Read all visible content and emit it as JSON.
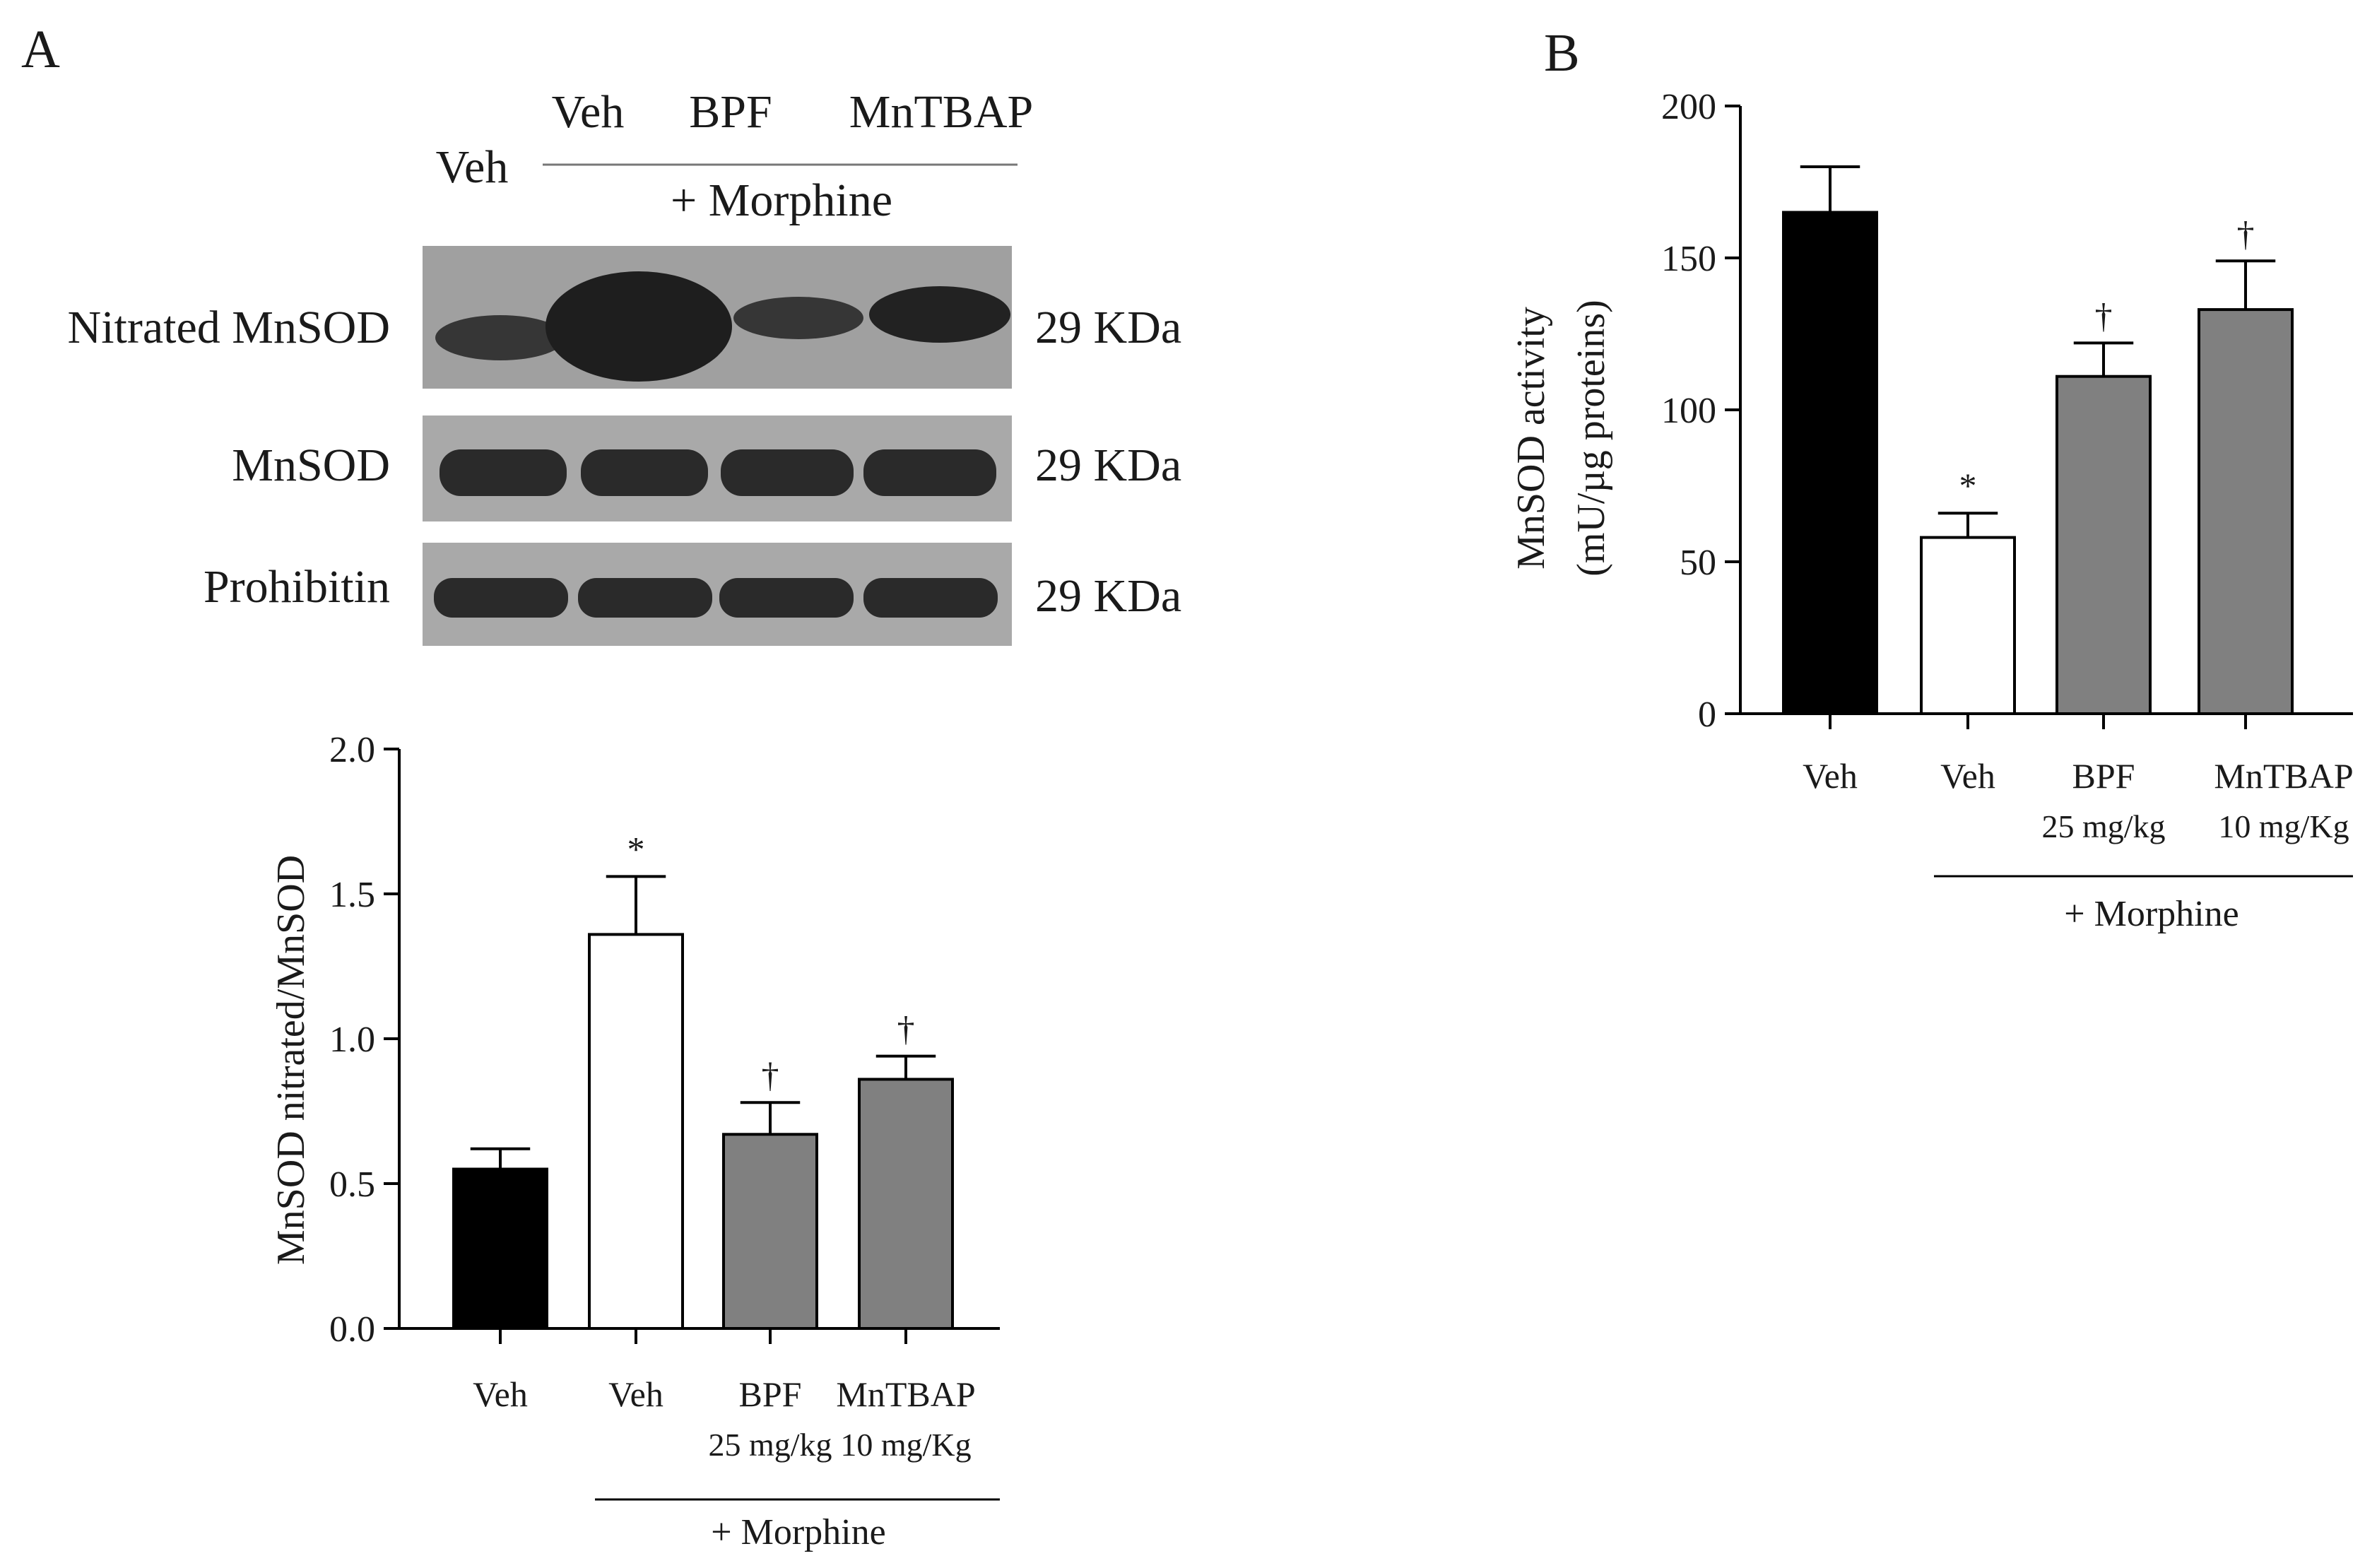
{
  "panels": {
    "a": {
      "label": "A",
      "blot": {
        "lanes": [
          "Veh",
          "Veh",
          "BPF",
          "MnTBAP"
        ],
        "group_label": "+ Morphine",
        "rows": [
          {
            "name": "Nitrated MnSOD",
            "size": "29 KDa",
            "intensity": [
              0.55,
              1.0,
              0.45,
              0.7
            ]
          },
          {
            "name": "MnSOD",
            "size": "29 KDa",
            "intensity": [
              0.9,
              0.9,
              0.9,
              0.9
            ]
          },
          {
            "name": "Prohibitin",
            "size": "29 KDa",
            "intensity": [
              0.9,
              0.9,
              0.9,
              0.9
            ]
          }
        ]
      }
    },
    "b": {
      "label": "B"
    }
  },
  "colors": {
    "black": "#000000",
    "white": "#ffffff",
    "gray": "#808080",
    "blot_bg": "#a9a9a9",
    "band": "#2a2a2a"
  },
  "chart_data": [
    {
      "type": "bar",
      "panel": "A",
      "title": "",
      "xlabel": "",
      "ylabel": "MnSOD nitrated/MnSOD",
      "ylim": [
        0,
        2.0
      ],
      "yticks": [
        "0.0",
        "0.5",
        "1.0",
        "1.5",
        "2.0"
      ],
      "ytick_values": [
        0,
        0.5,
        1.0,
        1.5,
        2.0
      ],
      "categories": [
        "Veh",
        "Veh",
        "BPF",
        "MnTBAP"
      ],
      "doses": [
        "",
        "",
        "25 mg/kg",
        "10 mg/Kg"
      ],
      "values": [
        0.55,
        1.36,
        0.67,
        0.86
      ],
      "errors": [
        0.07,
        0.2,
        0.11,
        0.08
      ],
      "fills": [
        "#000000",
        "#ffffff",
        "#808080",
        "#808080"
      ],
      "annotations": [
        "",
        "*",
        "†",
        "†"
      ],
      "group_label": "+ Morphine"
    },
    {
      "type": "bar",
      "panel": "B",
      "title": "",
      "xlabel": "",
      "ylabel": "MnSOD activity",
      "ylabel2": "(mU/µg proteins)",
      "ylim": [
        0,
        200
      ],
      "yticks": [
        "0",
        "50",
        "100",
        "150",
        "200"
      ],
      "ytick_values": [
        0,
        50,
        100,
        150,
        200
      ],
      "categories": [
        "Veh",
        "Veh",
        "BPF",
        "MnTBAP"
      ],
      "doses": [
        "",
        "",
        "25 mg/kg",
        "10 mg/Kg"
      ],
      "values": [
        165,
        58,
        111,
        133
      ],
      "errors": [
        15,
        8,
        11,
        16
      ],
      "fills": [
        "#000000",
        "#ffffff",
        "#808080",
        "#808080"
      ],
      "annotations": [
        "",
        "*",
        "†",
        "†"
      ],
      "group_label": "+ Morphine"
    }
  ]
}
